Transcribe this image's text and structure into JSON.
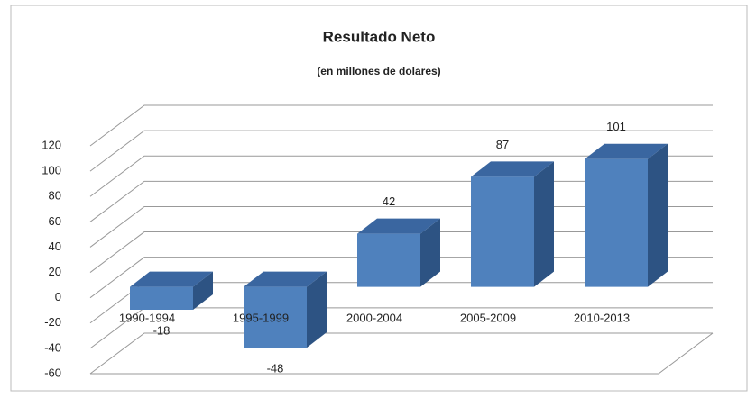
{
  "chart_data": {
    "type": "bar3d",
    "title": "Resultado Neto",
    "subtitle": "(en millones de dolares)",
    "categories": [
      "1990-1994",
      "1995-1999",
      "2000-2004",
      "2005-2009",
      "2010-2013"
    ],
    "values": [
      -18,
      -48,
      42,
      87,
      101
    ],
    "color": "#4f81bd",
    "ylim": [
      -60,
      120
    ],
    "yticks": [
      -60,
      -40,
      -20,
      0,
      20,
      40,
      60,
      80,
      100,
      120
    ],
    "grid": true
  }
}
